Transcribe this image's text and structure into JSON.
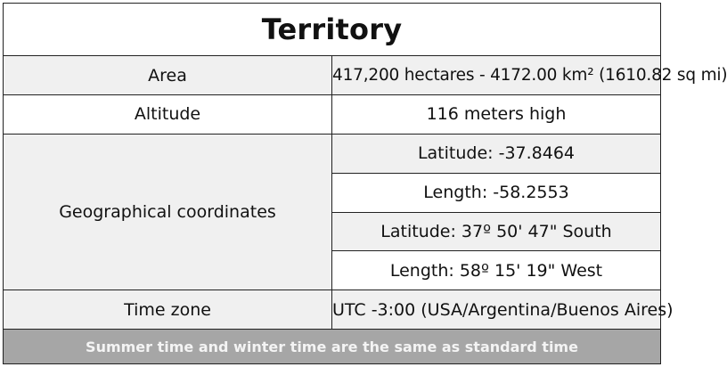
{
  "title": "Territory",
  "rows": {
    "area": {
      "label": "Area",
      "value": "417,200 hectares - 4172.00 km² (1610.82 sq mi)"
    },
    "altitude": {
      "label": "Altitude",
      "value": "116 meters high"
    },
    "coordinates": {
      "label": "Geographical coordinates",
      "values": [
        "Latitude: -37.8464",
        "Length: -58.2553",
        "Latitude: 37º 50' 47\" South",
        "Length: 58º 15' 19\" West"
      ]
    },
    "time_zone": {
      "label": "Time zone",
      "value": "UTC -3:00 (USA/Argentina/Buenos Aires)"
    }
  },
  "footer": "Summer time and winter time are the same as standard time",
  "colors": {
    "header_bg": "#ffffff",
    "shaded_row_bg": "#f0f0f0",
    "footer_bg": "#a6a6a6",
    "border": "#222222"
  }
}
